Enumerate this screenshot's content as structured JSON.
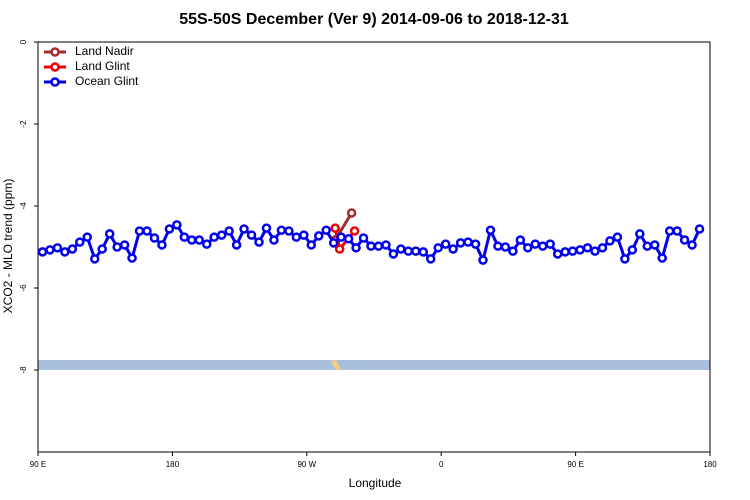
{
  "chart_data": {
    "type": "line",
    "title": "55S-50S December (Ver 9)   2014-09-06 to 2018-12-31",
    "x_label": "Longitude",
    "y_label": "XCO2 - MLO trend (ppm)",
    "xlim": [
      90,
      540
    ],
    "xticks": [
      {
        "value": 90,
        "label": "90 E"
      },
      {
        "value": 180,
        "label": "180"
      },
      {
        "value": 270,
        "label": "90 W"
      },
      {
        "value": 360,
        "label": "0"
      },
      {
        "value": 450,
        "label": "90 E"
      },
      {
        "value": 540,
        "label": "180"
      }
    ],
    "ylim": [
      -10,
      0
    ],
    "yticks": [
      0,
      -2,
      -4,
      -6,
      -8
    ],
    "legend": "top-left",
    "series": [
      {
        "name": "Land Nadir",
        "color": "#a52a2a",
        "x": [
          289,
          300
        ],
        "values": [
          -4.83,
          -4.17
        ]
      },
      {
        "name": "Land Glint",
        "color": "#ee0000",
        "x": [
          289,
          292,
          302
        ],
        "values": [
          -4.54,
          -5.05,
          -4.61
        ]
      },
      {
        "name": "Ocean Glint",
        "color": "#0000ee",
        "x": [
          93,
          98,
          103,
          108,
          113,
          118,
          123,
          128,
          133,
          138,
          143,
          148,
          153,
          158,
          163,
          168,
          173,
          178,
          183,
          188,
          193,
          198,
          203,
          208,
          213,
          218,
          223,
          228,
          233,
          238,
          243,
          248,
          253,
          258,
          263,
          268,
          273,
          278,
          283,
          288,
          293,
          298,
          303,
          308,
          313,
          318,
          323,
          328,
          333,
          338,
          343,
          348,
          353,
          358,
          363,
          368,
          373,
          378,
          383,
          388,
          393,
          398,
          403,
          408,
          413,
          418,
          423,
          428,
          433,
          438,
          443,
          448,
          453,
          458,
          463,
          468,
          473,
          478,
          483,
          488,
          493,
          498,
          503,
          508,
          513,
          518,
          523,
          528,
          533
        ],
        "values": [
          -5.12,
          -5.07,
          -5.02,
          -5.12,
          -5.05,
          -4.88,
          -4.76,
          -5.29,
          -5.05,
          -4.68,
          -5.0,
          -4.95,
          -5.27,
          -4.61,
          -4.61,
          -4.78,
          -4.95,
          -4.56,
          -4.46,
          -4.76,
          -4.83,
          -4.83,
          -4.93,
          -4.76,
          -4.71,
          -4.61,
          -4.95,
          -4.56,
          -4.71,
          -4.88,
          -4.54,
          -4.83,
          -4.59,
          -4.61,
          -4.76,
          -4.71,
          -4.95,
          -4.73,
          -4.59,
          -4.9,
          -4.76,
          -4.8,
          -5.02,
          -4.78,
          -4.98,
          -4.98,
          -4.95,
          -5.17,
          -5.05,
          -5.1,
          -5.1,
          -5.12,
          -5.29,
          -5.02,
          -4.93,
          -5.05,
          -4.9,
          -4.88,
          -4.93,
          -5.32,
          -4.59,
          -4.98,
          -5.0,
          -5.1,
          -4.83,
          -5.02,
          -4.93,
          -4.98,
          -4.93,
          -5.17,
          -5.12,
          -5.1,
          -5.07,
          -5.02,
          -5.1,
          -5.02,
          -4.85,
          -4.76,
          -5.29,
          -5.07,
          -4.68,
          -4.98,
          -4.95,
          -5.27,
          -4.61,
          -4.61,
          -4.83,
          -4.95,
          -4.56
        ]
      }
    ]
  }
}
